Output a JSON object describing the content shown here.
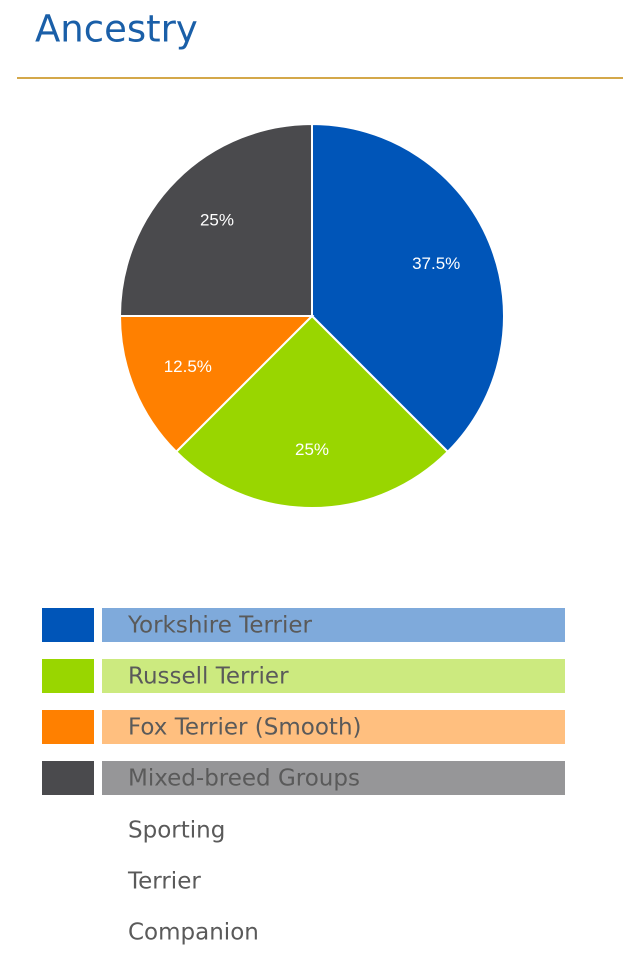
{
  "header": {
    "title": "Ancestry"
  },
  "chart_data": {
    "type": "pie",
    "categories": [
      "Yorkshire Terrier",
      "Russell Terrier",
      "Fox Terrier (Smooth)",
      "Mixed-breed Groups"
    ],
    "values": [
      37.5,
      25,
      12.5,
      25
    ],
    "value_labels": [
      "37.5%",
      "25%",
      "12.5%",
      "25%"
    ],
    "colors": [
      "#0055b8",
      "#99d600",
      "#ff8000",
      "#4a4a4d"
    ]
  },
  "groups": [
    "Sporting",
    "Terrier",
    "Companion"
  ]
}
